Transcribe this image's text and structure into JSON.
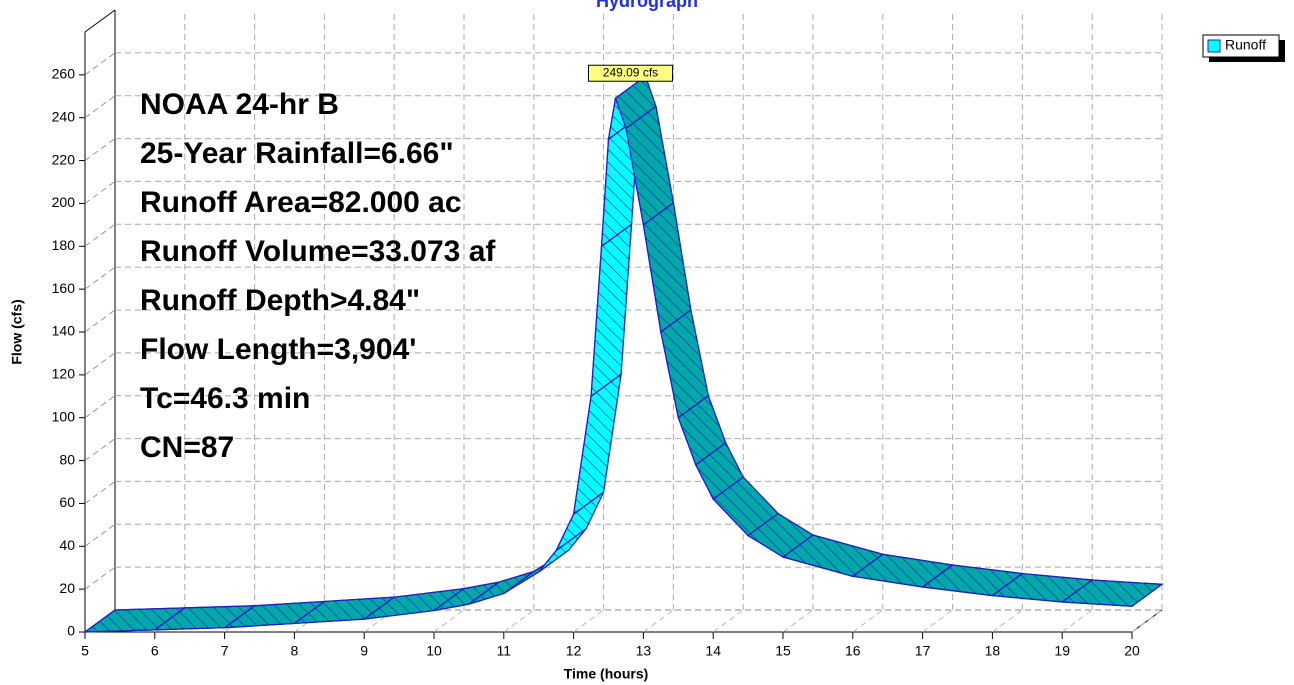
{
  "chart_data": {
    "type": "hydrograph",
    "title": "Hydrograph",
    "xlabel": "Time  (hours)",
    "ylabel": "Flow  (cfs)",
    "annotations": [
      "NOAA 24-hr B",
      "25-Year Rainfall=6.66\"",
      "Runoff Area=82.000 ac",
      "Runoff Volume=33.073 af",
      "Runoff Depth>4.84\"",
      "Flow Length=3,904'",
      "Tc=46.3 min",
      "CN=87"
    ],
    "xlim": [
      5,
      20
    ],
    "ylim": [
      0,
      280
    ],
    "xticks": [
      5,
      6,
      7,
      8,
      9,
      10,
      11,
      12,
      13,
      14,
      15,
      16,
      17,
      18,
      19,
      20
    ],
    "yticks": [
      0,
      20,
      40,
      60,
      80,
      100,
      120,
      140,
      160,
      180,
      200,
      220,
      240,
      260
    ],
    "grid": true,
    "legend": "top-right",
    "series": [
      {
        "name": "Runoff",
        "color": "#00ffff",
        "x": [
          5,
          6,
          7,
          8,
          9,
          10,
          10.5,
          11,
          11.5,
          11.75,
          12,
          12.25,
          12.4,
          12.5,
          12.6,
          12.75,
          13,
          13.25,
          13.5,
          13.75,
          14,
          14.5,
          15,
          16,
          17,
          18,
          19,
          20
        ],
        "values": [
          0,
          1,
          2,
          4,
          6,
          10,
          13,
          18,
          28,
          38,
          55,
          110,
          180,
          230,
          249.09,
          235,
          190,
          140,
          100,
          78,
          62,
          45,
          35,
          26,
          21,
          17,
          14,
          12
        ],
        "value_labels": [
          null,
          null,
          null,
          null,
          null,
          null,
          null,
          null,
          null,
          null,
          null,
          null,
          null,
          null,
          "249.09 cfs",
          null,
          null,
          null,
          null,
          null,
          null,
          null,
          null,
          null,
          null,
          null,
          null,
          null
        ]
      }
    ]
  }
}
